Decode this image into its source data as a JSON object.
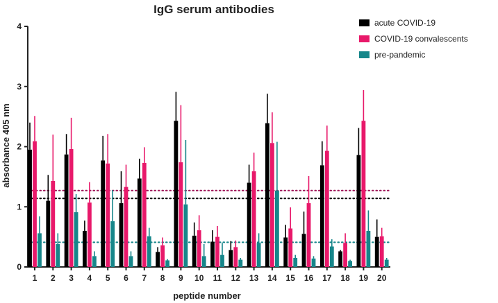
{
  "chart_data": {
    "type": "bar",
    "title": "IgG serum antibodies",
    "xlabel": "peptide number",
    "ylabel": "absorbance 405 nm",
    "ylim": [
      0,
      4
    ],
    "yticks": [
      "0",
      "1",
      "2",
      "3",
      "4"
    ],
    "categories": [
      "1",
      "2",
      "3",
      "4",
      "5",
      "6",
      "7",
      "8",
      "9",
      "10",
      "11",
      "12",
      "13",
      "14",
      "15",
      "16",
      "17",
      "18",
      "19",
      "20"
    ],
    "legend_position": "top-right",
    "grid": false,
    "series": [
      {
        "name": "acute COVID-19",
        "color": "#000000",
        "values": [
          1.95,
          1.1,
          1.87,
          0.6,
          1.77,
          1.06,
          1.47,
          0.25,
          2.43,
          0.52,
          0.42,
          0.28,
          1.4,
          2.39,
          0.49,
          0.55,
          1.69,
          0.26,
          1.86,
          0.5
        ],
        "error": [
          0.45,
          0.43,
          0.34,
          0.17,
          0.41,
          0.53,
          0.33,
          0.08,
          0.48,
          0.22,
          0.19,
          0.15,
          0.3,
          0.49,
          0.21,
          0.37,
          0.4,
          0.02,
          0.45,
          0.29
        ]
      },
      {
        "name": "COVID-19 convalescents",
        "color": "#e8196a",
        "values": [
          2.09,
          1.43,
          1.96,
          1.07,
          1.72,
          1.33,
          1.73,
          0.36,
          1.74,
          0.61,
          0.5,
          0.33,
          1.59,
          2.06,
          0.64,
          1.06,
          1.93,
          0.4,
          2.43,
          0.51
        ],
        "error": [
          0.42,
          0.77,
          0.52,
          0.34,
          0.49,
          0.37,
          0.26,
          0.13,
          0.95,
          0.25,
          0.18,
          0.11,
          0.31,
          0.51,
          0.35,
          0.45,
          0.42,
          0.16,
          0.51,
          0.14
        ]
      },
      {
        "name": "pre-pandemic",
        "color": "#16868a",
        "values": [
          0.56,
          0.38,
          0.91,
          0.18,
          0.76,
          0.18,
          0.51,
          0.11,
          1.04,
          0.18,
          0.2,
          0.12,
          0.4,
          1.27,
          0.15,
          0.14,
          0.34,
          0.1,
          0.6,
          0.12
        ],
        "error": [
          0.28,
          0.18,
          0.3,
          0.08,
          0.52,
          0.08,
          0.14,
          0.02,
          1.07,
          0.2,
          0.2,
          0.03,
          0.16,
          0.81,
          0.05,
          0.04,
          0.12,
          0.02,
          0.34,
          0.03
        ]
      }
    ],
    "reference_lines": [
      {
        "series": "acute COVID-19",
        "value": 1.14,
        "color": "#000000"
      },
      {
        "series": "COVID-19 convalescents",
        "value": 1.27,
        "color": "#a0195a"
      },
      {
        "series": "pre-pandemic",
        "value": 0.41,
        "color": "#16868a"
      }
    ]
  }
}
